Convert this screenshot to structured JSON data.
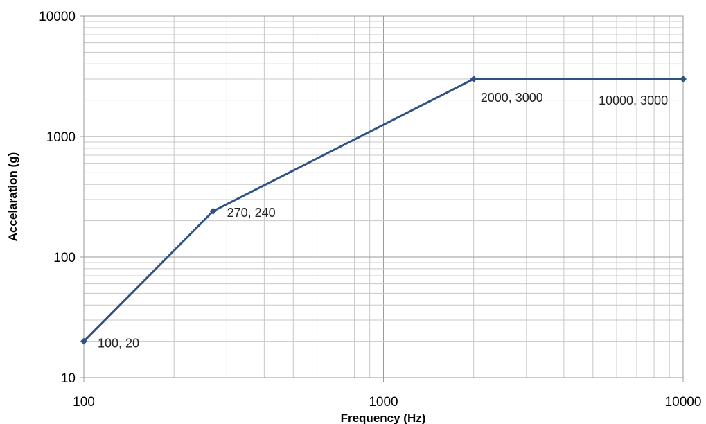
{
  "chart_data": {
    "type": "line",
    "x_scale": "log",
    "y_scale": "log",
    "xlim": [
      100,
      10000
    ],
    "ylim": [
      10,
      10000
    ],
    "xlabel": "Frequency (Hz)",
    "ylabel": "Accelaration (g)",
    "x_ticks": [
      "100",
      "1000",
      "10000"
    ],
    "y_ticks": [
      "10",
      "100",
      "1000",
      "10000"
    ],
    "grid": true,
    "legend": "none",
    "series": [
      {
        "x": [
          100,
          270,
          2000,
          10000
        ],
        "y": [
          20,
          240,
          3000,
          3000
        ],
        "color": "#2E5283",
        "point_labels": [
          "100, 20",
          "270, 240",
          "2000, 3000",
          "10000, 3000"
        ]
      }
    ]
  }
}
